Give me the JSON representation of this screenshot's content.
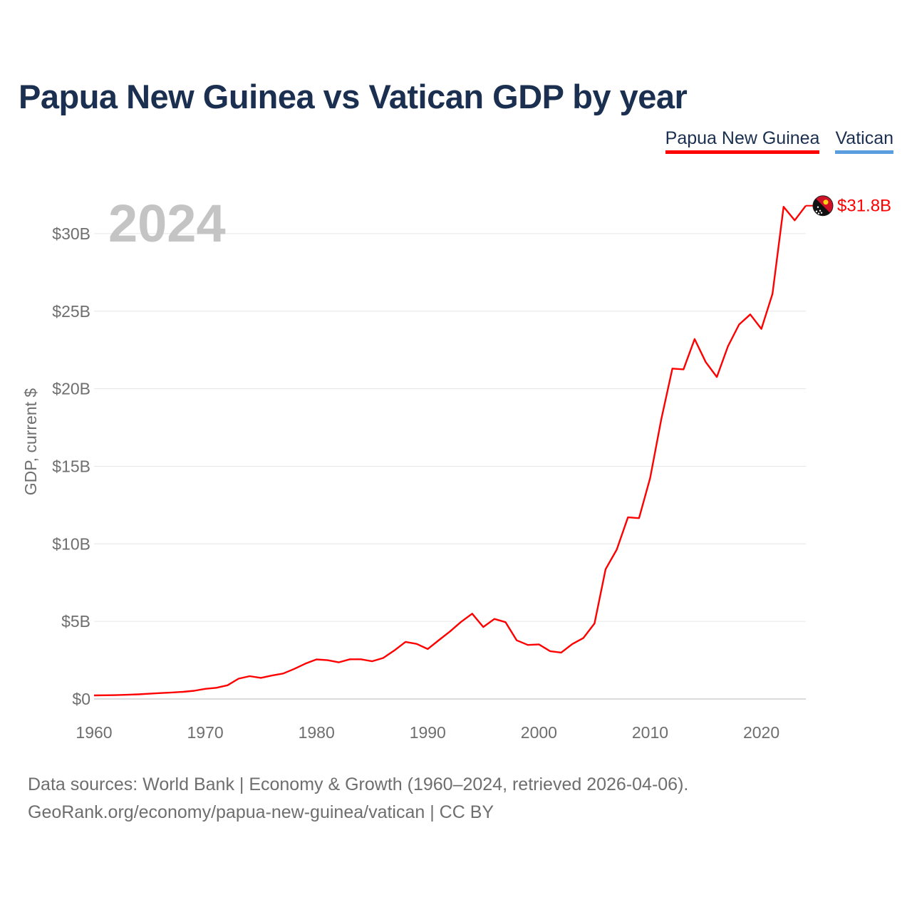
{
  "title": "Papua New Guinea vs Vatican GDP by year",
  "legend": [
    {
      "label": "Papua New Guinea",
      "color": "#ff0000"
    },
    {
      "label": "Vatican",
      "color": "#5b9ee0"
    }
  ],
  "year_label": "2024",
  "end_label": "$31.8B",
  "footer": {
    "line1": "Data sources: World Bank | Economy & Growth (1960–2024, retrieved 2026-04-06).",
    "line2": "GeoRank.org/economy/papua-new-guinea/vatican | CC BY"
  },
  "chart_data": {
    "type": "line",
    "title": "Papua New Guinea vs Vatican GDP by year",
    "xlabel": "",
    "ylabel": "GDP, current $",
    "xlim": [
      1960,
      2024
    ],
    "ylim": [
      0,
      32.5
    ],
    "x_ticks": [
      1960,
      1970,
      1980,
      1990,
      2000,
      2010,
      2020
    ],
    "y_ticks": [
      0,
      5,
      10,
      15,
      20,
      25,
      30
    ],
    "y_tick_labels": [
      "$0",
      "$5B",
      "$10B",
      "$15B",
      "$20B",
      "$25B",
      "$30B"
    ],
    "x_tick_labels": [
      "1960",
      "1970",
      "1980",
      "1990",
      "2000",
      "2010",
      "2020"
    ],
    "grid": true,
    "series": [
      {
        "name": "Papua New Guinea",
        "color": "#ff0000",
        "unit": "billion USD",
        "x": [
          1960,
          1961,
          1962,
          1963,
          1964,
          1965,
          1966,
          1967,
          1968,
          1969,
          1970,
          1971,
          1972,
          1973,
          1974,
          1975,
          1976,
          1977,
          1978,
          1979,
          1980,
          1981,
          1982,
          1983,
          1984,
          1985,
          1986,
          1987,
          1988,
          1989,
          1990,
          1991,
          1992,
          1993,
          1994,
          1995,
          1996,
          1997,
          1998,
          1999,
          2000,
          2001,
          2002,
          2003,
          2004,
          2005,
          2006,
          2007,
          2008,
          2009,
          2010,
          2011,
          2012,
          2013,
          2014,
          2015,
          2016,
          2017,
          2018,
          2019,
          2020,
          2021,
          2022,
          2023,
          2024
        ],
        "values": [
          0.23,
          0.24,
          0.25,
          0.27,
          0.3,
          0.34,
          0.38,
          0.42,
          0.46,
          0.53,
          0.65,
          0.72,
          0.88,
          1.31,
          1.47,
          1.36,
          1.51,
          1.64,
          1.94,
          2.28,
          2.55,
          2.5,
          2.36,
          2.56,
          2.56,
          2.43,
          2.64,
          3.13,
          3.68,
          3.55,
          3.22,
          3.79,
          4.35,
          4.97,
          5.5,
          4.64,
          5.16,
          4.95,
          3.78,
          3.48,
          3.52,
          3.08,
          2.99,
          3.54,
          3.93,
          4.87,
          8.37,
          9.63,
          11.71,
          11.66,
          14.25,
          18.03,
          21.3,
          21.25,
          23.2,
          21.72,
          20.76,
          22.74,
          24.14,
          24.79,
          23.86,
          26.12,
          31.73,
          30.86,
          31.8
        ]
      },
      {
        "name": "Vatican",
        "color": "#5b9ee0",
        "x": [],
        "values": []
      }
    ],
    "end_value_label": "$31.8B"
  }
}
